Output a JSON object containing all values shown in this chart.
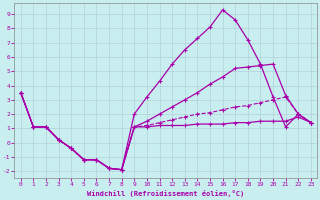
{
  "xlabel": "Windchill (Refroidissement éolien,°C)",
  "background_color": "#c8eef0",
  "grid_color": "#b0d0d8",
  "line_color": "#aa00aa",
  "xlim": [
    -0.5,
    23.5
  ],
  "ylim": [
    -2.5,
    9.8
  ],
  "xticks": [
    0,
    1,
    2,
    3,
    4,
    5,
    6,
    7,
    8,
    9,
    10,
    11,
    12,
    13,
    14,
    15,
    16,
    17,
    18,
    19,
    20,
    21,
    22,
    23
  ],
  "yticks": [
    -2,
    -1,
    0,
    1,
    2,
    3,
    4,
    5,
    6,
    7,
    8,
    9
  ],
  "line1_x": [
    0,
    1,
    2,
    3,
    4,
    5,
    6,
    7,
    8,
    9,
    10,
    11,
    12,
    13,
    14,
    15,
    16,
    17,
    18,
    19,
    20,
    21,
    22,
    23
  ],
  "line1_y": [
    3.5,
    1.1,
    1.1,
    0.2,
    -0.4,
    -1.2,
    -1.2,
    -1.8,
    -1.9,
    2.0,
    3.2,
    4.3,
    5.5,
    6.5,
    7.3,
    8.1,
    9.3,
    8.6,
    7.2,
    5.5,
    3.2,
    1.1,
    2.0,
    1.4
  ],
  "line2_x": [
    0,
    1,
    2,
    3,
    4,
    5,
    6,
    7,
    8,
    9,
    10,
    11,
    12,
    13,
    14,
    15,
    16,
    17,
    18,
    19,
    20,
    21,
    22,
    23
  ],
  "line2_y": [
    3.5,
    1.1,
    1.1,
    0.2,
    -0.4,
    -1.2,
    -1.2,
    -1.8,
    -1.9,
    1.1,
    1.5,
    2.0,
    2.5,
    3.0,
    3.5,
    4.1,
    4.6,
    5.2,
    5.3,
    5.4,
    5.5,
    3.3,
    2.0,
    1.4
  ],
  "line3_x": [
    0,
    1,
    2,
    3,
    4,
    5,
    6,
    7,
    8,
    9,
    10,
    11,
    12,
    13,
    14,
    15,
    16,
    17,
    18,
    19,
    20,
    21,
    22,
    23
  ],
  "line3_y": [
    3.5,
    1.1,
    1.1,
    0.2,
    -0.4,
    -1.2,
    -1.2,
    -1.8,
    -1.9,
    1.1,
    1.2,
    1.4,
    1.6,
    1.8,
    2.0,
    2.1,
    2.3,
    2.5,
    2.6,
    2.8,
    3.0,
    3.2,
    2.0,
    1.4
  ],
  "line4_x": [
    0,
    1,
    2,
    3,
    4,
    5,
    6,
    7,
    8,
    9,
    10,
    11,
    12,
    13,
    14,
    15,
    16,
    17,
    18,
    19,
    20,
    21,
    22,
    23
  ],
  "line4_y": [
    3.5,
    1.1,
    1.1,
    0.2,
    -0.4,
    -1.2,
    -1.2,
    -1.8,
    -1.9,
    1.1,
    1.1,
    1.2,
    1.2,
    1.2,
    1.3,
    1.3,
    1.3,
    1.4,
    1.4,
    1.5,
    1.5,
    1.5,
    1.8,
    1.4
  ]
}
